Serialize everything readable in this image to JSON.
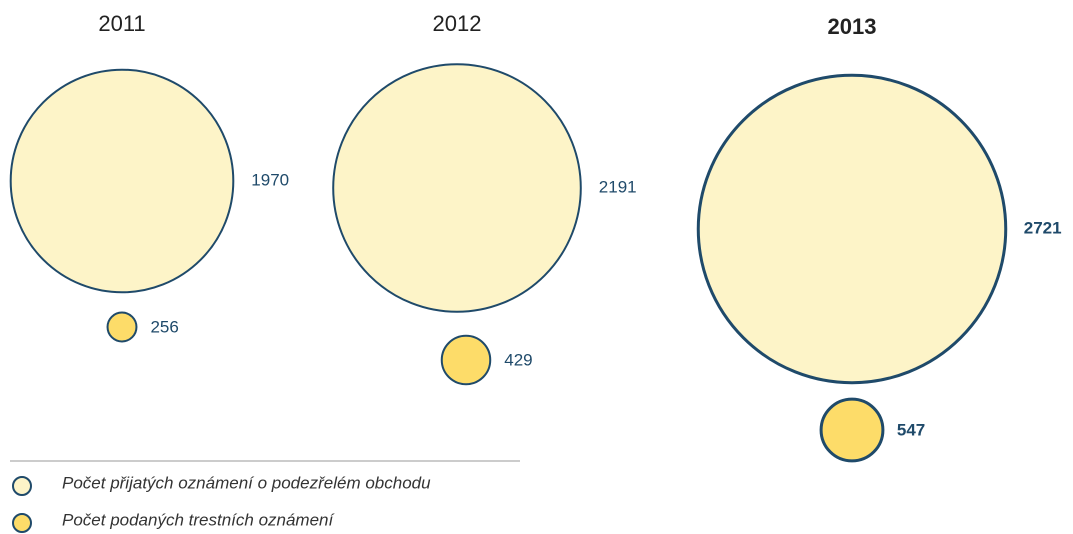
{
  "chart_data": {
    "type": "bubble",
    "categories": [
      "2011",
      "2012",
      "2013"
    ],
    "series": [
      {
        "name": "Počet přijatých oznámení o podezřelém obchodu",
        "color": "#fdf4c8",
        "values": [
          1970,
          2191,
          2721
        ]
      },
      {
        "name": "Počet podaných trestních oznámení",
        "color": "#fddc69",
        "values": [
          256,
          429,
          547
        ]
      }
    ],
    "stroke": "#1f4a6a"
  }
}
